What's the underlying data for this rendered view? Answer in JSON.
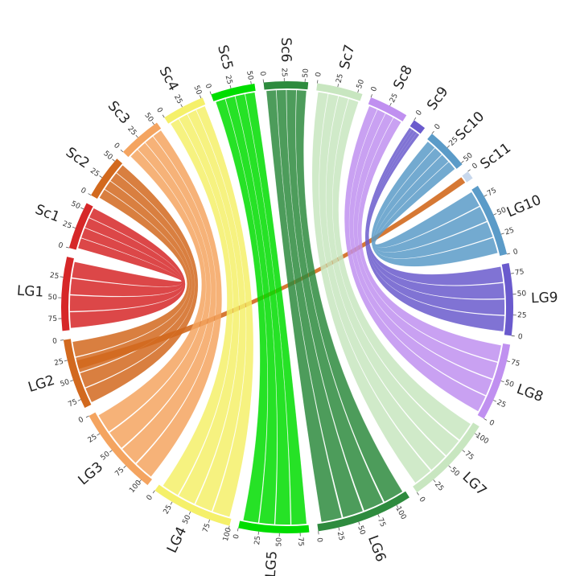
{
  "chart_data": {
    "type": "chord",
    "segments": [
      {
        "name": "LG1",
        "side": "left",
        "length": 90,
        "color": "#d62728",
        "ticks": [
          25,
          50,
          75
        ]
      },
      {
        "name": "Sc1",
        "side": "right",
        "length": 58,
        "color": "#d62728",
        "ticks": [
          0,
          25,
          50
        ]
      },
      {
        "name": "Sc2",
        "side": "right",
        "length": 54,
        "color": "#d2691e",
        "ticks": [
          0,
          25,
          50
        ]
      },
      {
        "name": "Sc3",
        "side": "right",
        "length": 54,
        "color": "#f4a460",
        "ticks": [
          0,
          25,
          50
        ]
      },
      {
        "name": "Sc4",
        "side": "right",
        "length": 52,
        "color": "#f5f06a",
        "ticks": [
          0,
          25,
          50
        ]
      },
      {
        "name": "Sc5",
        "side": "right",
        "length": 54,
        "color": "#00dd00",
        "ticks": [
          0,
          25,
          50
        ]
      },
      {
        "name": "Sc6",
        "side": "right",
        "length": 54,
        "color": "#2e8b3e",
        "ticks": [
          0,
          25,
          50
        ]
      },
      {
        "name": "Sc7",
        "side": "right",
        "length": 56,
        "color": "#c8e6c0",
        "ticks": [
          0,
          25,
          50
        ]
      },
      {
        "name": "Sc8",
        "side": "right",
        "length": 48,
        "color": "#c090f0",
        "ticks": [
          0,
          25
        ]
      },
      {
        "name": "Sc9",
        "side": "right",
        "length": 16,
        "color": "#6a5acd",
        "ticks": [
          0
        ]
      },
      {
        "name": "Sc10",
        "side": "right",
        "length": 52,
        "color": "#5b9bc8",
        "ticks": [
          0,
          25,
          50
        ]
      },
      {
        "name": "Sc11",
        "side": "right",
        "length": 10,
        "color": "#c8d8ec",
        "ticks": [
          0
        ]
      },
      {
        "name": "LG10",
        "side": "left",
        "length": 90,
        "color": "#5b9bc8",
        "ticks": [
          0,
          25,
          50,
          75
        ]
      },
      {
        "name": "LG9",
        "side": "left",
        "length": 88,
        "color": "#6a5acd",
        "ticks": [
          0,
          25,
          50,
          75
        ]
      },
      {
        "name": "LG8",
        "side": "left",
        "length": 95,
        "color": "#c090f0",
        "ticks": [
          0,
          25,
          50,
          75
        ]
      },
      {
        "name": "LG7",
        "side": "left",
        "length": 110,
        "color": "#c8e6c0",
        "ticks": [
          0,
          25,
          50,
          75,
          100
        ]
      },
      {
        "name": "LG6",
        "side": "left",
        "length": 118,
        "color": "#2e8b3e",
        "ticks": [
          0,
          25,
          50,
          75,
          100
        ]
      },
      {
        "name": "LG5",
        "side": "left",
        "length": 86,
        "color": "#00dd00",
        "ticks": [
          0,
          25,
          50,
          75
        ]
      },
      {
        "name": "LG4",
        "side": "left",
        "length": 100,
        "color": "#f5f06a",
        "ticks": [
          0,
          25,
          50,
          75,
          100
        ]
      },
      {
        "name": "LG3",
        "side": "left",
        "length": 110,
        "color": "#f4a460",
        "ticks": [
          0,
          25,
          50,
          75,
          100
        ]
      },
      {
        "name": "LG2",
        "side": "left",
        "length": 86,
        "color": "#d2691e",
        "ticks": [
          0,
          25,
          50,
          75
        ]
      }
    ],
    "links": [
      {
        "from": "LG1",
        "to": "Sc1",
        "color": "#d62728"
      },
      {
        "from": "LG2",
        "to": "Sc2",
        "color": "#d2691e"
      },
      {
        "from": "LG2",
        "to": "Sc11",
        "color": "#d2691e"
      },
      {
        "from": "LG3",
        "to": "Sc3",
        "color": "#f4a460"
      },
      {
        "from": "LG4",
        "to": "Sc4",
        "color": "#f5f06a"
      },
      {
        "from": "LG5",
        "to": "Sc5",
        "color": "#00dd00"
      },
      {
        "from": "LG6",
        "to": "Sc6",
        "color": "#2e8b3e"
      },
      {
        "from": "LG7",
        "to": "Sc7",
        "color": "#c8e6c0"
      },
      {
        "from": "LG8",
        "to": "Sc8",
        "color": "#c090f0"
      },
      {
        "from": "LG9",
        "to": "Sc9",
        "color": "#6a5acd"
      },
      {
        "from": "LG10",
        "to": "Sc10",
        "color": "#5b9bc8"
      }
    ]
  }
}
